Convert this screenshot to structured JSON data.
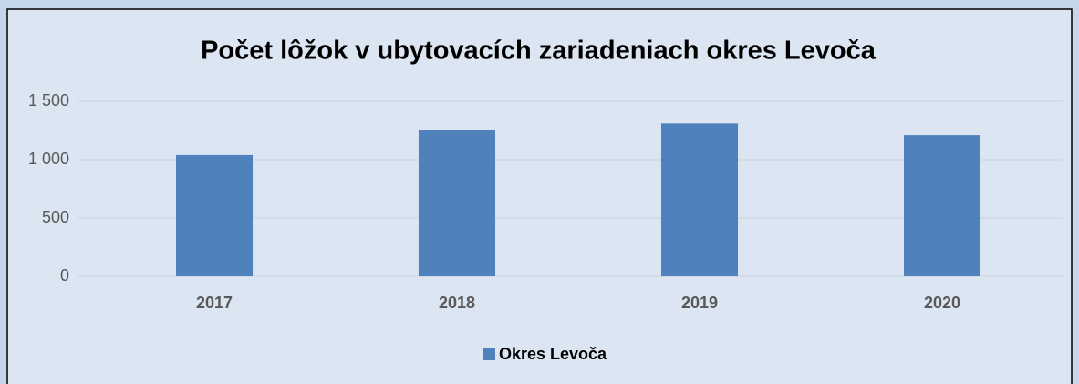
{
  "chart_data": {
    "type": "bar",
    "title": "Počet lôžok v ubytovacích zariadeniach okres Levoča",
    "categories": [
      "2017",
      "2018",
      "2019",
      "2020"
    ],
    "series": [
      {
        "name": "Okres Levoča",
        "color": "#4f81bd",
        "values": [
          1040,
          1250,
          1310,
          1210
        ]
      }
    ],
    "ylim": [
      0,
      1500
    ],
    "yticks": [
      0,
      500,
      {
        "value": 1000,
        "label": "1 000"
      },
      {
        "value": 1500,
        "label": "1 500"
      }
    ],
    "grid": true,
    "legend": "bottom"
  }
}
